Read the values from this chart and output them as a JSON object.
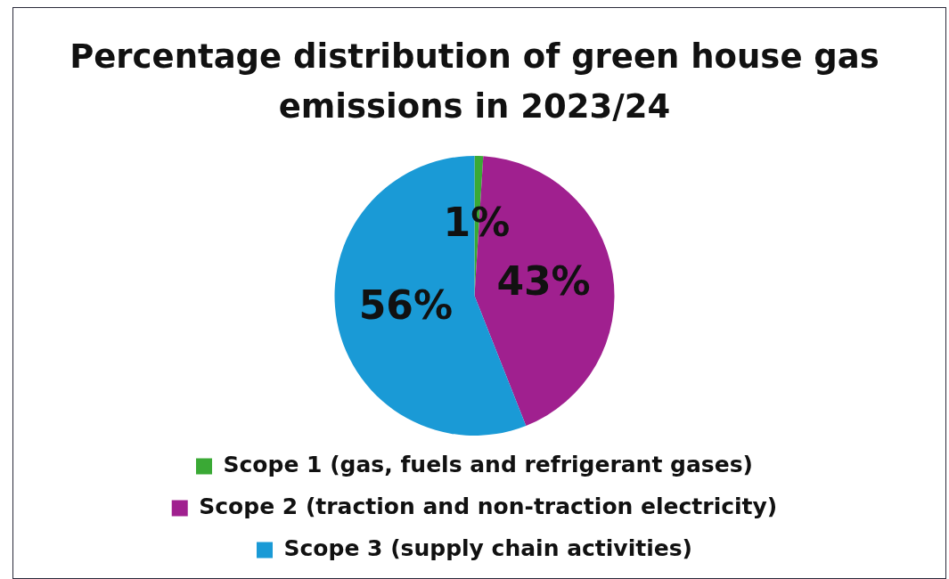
{
  "chart_data": {
    "type": "pie",
    "title": "Percentage distribution of green house gas emissions in 2023/24",
    "categories": [
      "Scope 1 (gas, fuels and refrigerant gases)",
      "Scope 2 (traction and non-traction electricity)",
      "Scope 3 (supply chain activities)"
    ],
    "values": [
      1,
      43,
      56
    ],
    "colors": [
      "#3aa935",
      "#a0208f",
      "#1a9ad6"
    ],
    "value_labels": [
      "1%",
      "43%",
      "56%"
    ],
    "legend": "bottom"
  }
}
